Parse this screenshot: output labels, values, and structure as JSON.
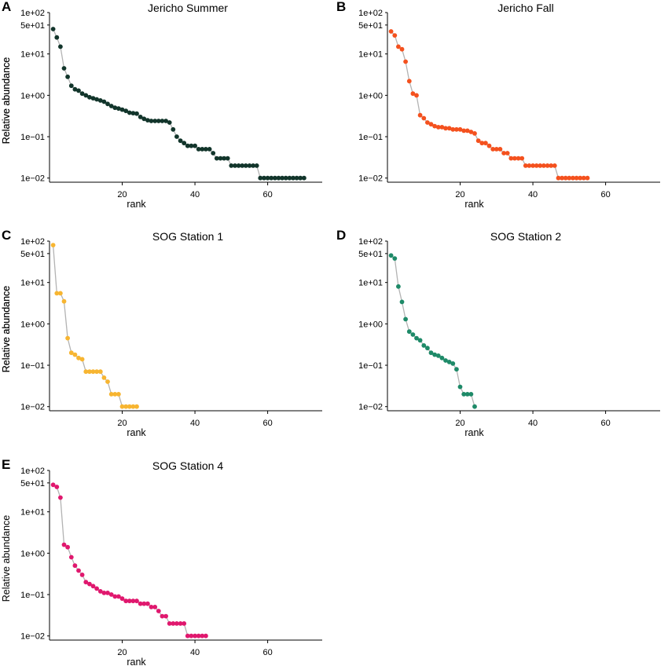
{
  "chart_data": [
    {
      "type": "scatter",
      "panel_letter": "A",
      "title": "Jericho Summer",
      "xlabel": "rank",
      "ylabel": "Relative abundance",
      "xlim": [
        0,
        75
      ],
      "ylim_log10": [
        -2.1,
        2.0
      ],
      "x_ticks": [
        20,
        40,
        60
      ],
      "x_tick_labels": [
        "20",
        "40",
        "60"
      ],
      "y_ticks_log10": [
        2,
        1.699,
        1,
        0,
        -1,
        -2
      ],
      "y_tick_labels": [
        "1e+02",
        "5e+01",
        "1e+01",
        "1e+00",
        "1e−01",
        "1e−02"
      ],
      "color": "#12352b",
      "x": [
        1,
        2,
        3,
        4,
        5,
        6,
        7,
        8,
        9,
        10,
        11,
        12,
        13,
        14,
        15,
        16,
        17,
        18,
        19,
        20,
        21,
        22,
        23,
        24,
        25,
        26,
        27,
        28,
        29,
        30,
        31,
        32,
        33,
        34,
        35,
        36,
        37,
        38,
        39,
        40,
        41,
        42,
        43,
        44,
        45,
        46,
        47,
        48,
        49,
        50,
        51,
        52,
        53,
        54,
        55,
        56,
        57,
        58,
        59,
        60,
        61,
        62,
        63,
        64,
        65,
        66,
        67,
        68,
        69,
        70
      ],
      "values": [
        40,
        25,
        15,
        4.5,
        2.8,
        1.7,
        1.4,
        1.3,
        1.1,
        1.0,
        0.9,
        0.85,
        0.8,
        0.75,
        0.7,
        0.62,
        0.55,
        0.5,
        0.48,
        0.45,
        0.42,
        0.38,
        0.37,
        0.36,
        0.3,
        0.27,
        0.25,
        0.24,
        0.24,
        0.24,
        0.24,
        0.24,
        0.22,
        0.15,
        0.1,
        0.08,
        0.07,
        0.06,
        0.06,
        0.06,
        0.05,
        0.05,
        0.05,
        0.05,
        0.04,
        0.03,
        0.03,
        0.03,
        0.03,
        0.02,
        0.02,
        0.02,
        0.02,
        0.02,
        0.02,
        0.02,
        0.02,
        0.01,
        0.01,
        0.01,
        0.01,
        0.01,
        0.01,
        0.01,
        0.01,
        0.01,
        0.01,
        0.01,
        0.01,
        0.01
      ]
    },
    {
      "type": "scatter",
      "panel_letter": "B",
      "title": "Jericho Fall",
      "xlabel": "rank",
      "ylabel": "Relative abundance",
      "xlim": [
        0,
        75
      ],
      "ylim_log10": [
        -2.1,
        2.0
      ],
      "x_ticks": [
        20,
        40,
        60
      ],
      "x_tick_labels": [
        "20",
        "40",
        "60"
      ],
      "y_ticks_log10": [
        2,
        1.699,
        1,
        0,
        -1,
        -2
      ],
      "y_tick_labels": [
        "1e+02",
        "5e+01",
        "1e+01",
        "1e+00",
        "1e−01",
        "1e−02"
      ],
      "color": "#f4511e",
      "x": [
        1,
        2,
        3,
        4,
        5,
        6,
        7,
        8,
        9,
        10,
        11,
        12,
        13,
        14,
        15,
        16,
        17,
        18,
        19,
        20,
        21,
        22,
        23,
        24,
        25,
        26,
        27,
        28,
        29,
        30,
        31,
        32,
        33,
        34,
        35,
        36,
        37,
        38,
        39,
        40,
        41,
        42,
        43,
        44,
        45,
        46,
        47,
        48,
        49,
        50,
        51,
        52,
        53,
        54,
        55
      ],
      "values": [
        35,
        28,
        15,
        13,
        6.5,
        2.2,
        1.1,
        1.0,
        0.33,
        0.28,
        0.22,
        0.2,
        0.18,
        0.17,
        0.17,
        0.16,
        0.16,
        0.15,
        0.15,
        0.15,
        0.14,
        0.14,
        0.13,
        0.12,
        0.08,
        0.07,
        0.07,
        0.06,
        0.05,
        0.05,
        0.05,
        0.04,
        0.04,
        0.03,
        0.03,
        0.03,
        0.03,
        0.02,
        0.02,
        0.02,
        0.02,
        0.02,
        0.02,
        0.02,
        0.02,
        0.02,
        0.01,
        0.01,
        0.01,
        0.01,
        0.01,
        0.01,
        0.01,
        0.01,
        0.01
      ]
    },
    {
      "type": "scatter",
      "panel_letter": "C",
      "title": "SOG Station 1",
      "xlabel": "rank",
      "ylabel": "Relative abundance",
      "xlim": [
        0,
        75
      ],
      "ylim_log10": [
        -2.1,
        2.0
      ],
      "x_ticks": [
        20,
        40,
        60
      ],
      "x_tick_labels": [
        "20",
        "40",
        "60"
      ],
      "y_ticks_log10": [
        2,
        1.699,
        1,
        0,
        -1,
        -2
      ],
      "y_tick_labels": [
        "1e+02",
        "5e+01",
        "1e+01",
        "1e+00",
        "1e−01",
        "1e−02"
      ],
      "color": "#f7b531",
      "x": [
        1,
        2,
        3,
        4,
        5,
        6,
        7,
        8,
        9,
        10,
        11,
        12,
        13,
        14,
        15,
        16,
        17,
        18,
        19,
        20,
        21,
        22,
        23,
        24
      ],
      "values": [
        80,
        5.5,
        5.5,
        3.5,
        0.45,
        0.2,
        0.18,
        0.15,
        0.14,
        0.07,
        0.07,
        0.07,
        0.07,
        0.07,
        0.05,
        0.04,
        0.02,
        0.02,
        0.02,
        0.01,
        0.01,
        0.01,
        0.01,
        0.01
      ]
    },
    {
      "type": "scatter",
      "panel_letter": "D",
      "title": "SOG Station 2",
      "xlabel": "rank",
      "ylabel": "Relative abundance",
      "xlim": [
        0,
        75
      ],
      "ylim_log10": [
        -2.1,
        2.0
      ],
      "x_ticks": [
        20,
        40,
        60
      ],
      "x_tick_labels": [
        "20",
        "40",
        "60"
      ],
      "y_ticks_log10": [
        2,
        1.699,
        1,
        0,
        -1,
        -2
      ],
      "y_tick_labels": [
        "1e+02",
        "5e+01",
        "1e+01",
        "1e+00",
        "1e−01",
        "1e−02"
      ],
      "color": "#1e8a68",
      "x": [
        1,
        2,
        3,
        4,
        5,
        6,
        7,
        8,
        9,
        10,
        11,
        12,
        13,
        14,
        15,
        16,
        17,
        18,
        19,
        20,
        21,
        22,
        23,
        24
      ],
      "values": [
        45,
        38,
        8,
        3.4,
        1.3,
        0.65,
        0.55,
        0.45,
        0.4,
        0.3,
        0.26,
        0.2,
        0.18,
        0.17,
        0.15,
        0.13,
        0.12,
        0.11,
        0.08,
        0.03,
        0.02,
        0.02,
        0.02,
        0.01
      ]
    },
    {
      "type": "scatter",
      "panel_letter": "E",
      "title": "SOG Station 4",
      "xlabel": "rank",
      "ylabel": "Relative abundance",
      "xlim": [
        0,
        75
      ],
      "ylim_log10": [
        -2.1,
        2.0
      ],
      "x_ticks": [
        20,
        40,
        60
      ],
      "x_tick_labels": [
        "20",
        "40",
        "60"
      ],
      "y_ticks_log10": [
        2,
        1.699,
        1,
        0,
        -1,
        -2
      ],
      "y_tick_labels": [
        "1e+02",
        "5e+01",
        "1e+01",
        "1e+00",
        "1e−01",
        "1e−02"
      ],
      "color": "#e0186e",
      "x": [
        1,
        2,
        3,
        4,
        5,
        6,
        7,
        8,
        9,
        10,
        11,
        12,
        13,
        14,
        15,
        16,
        17,
        18,
        19,
        20,
        21,
        22,
        23,
        24,
        25,
        26,
        27,
        28,
        29,
        30,
        31,
        32,
        33,
        34,
        35,
        36,
        37,
        38,
        39,
        40,
        41,
        42,
        43
      ],
      "values": [
        45,
        40,
        22,
        1.6,
        1.4,
        0.8,
        0.5,
        0.38,
        0.3,
        0.2,
        0.18,
        0.16,
        0.14,
        0.12,
        0.11,
        0.11,
        0.1,
        0.09,
        0.09,
        0.08,
        0.07,
        0.07,
        0.07,
        0.07,
        0.06,
        0.06,
        0.06,
        0.05,
        0.05,
        0.04,
        0.03,
        0.03,
        0.02,
        0.02,
        0.02,
        0.02,
        0.02,
        0.01,
        0.01,
        0.01,
        0.01,
        0.01,
        0.01
      ]
    }
  ]
}
